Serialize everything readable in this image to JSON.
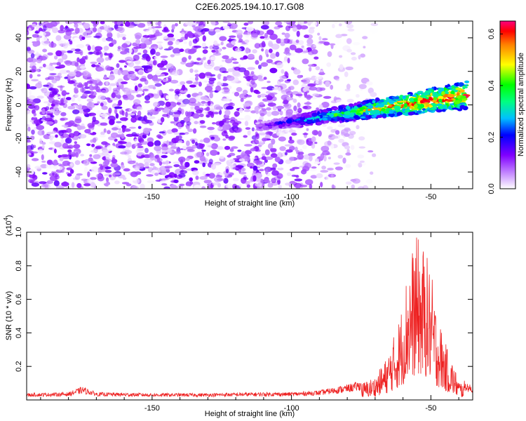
{
  "title": "C2E6.2025.194.10.17.G08",
  "chart_data": [
    {
      "type": "heatmap",
      "xlabel": "Height of straight line (km)",
      "ylabel": "Frequency (Hz)",
      "xlim": [
        -195,
        -35
      ],
      "ylim": [
        -50,
        50
      ],
      "x_ticks": [
        -150,
        -100,
        -50
      ],
      "y_ticks": [
        -40,
        -20,
        0,
        20,
        40
      ],
      "colorbar": {
        "label": "Normalized spectral amplitude",
        "range": [
          0.0,
          0.65
        ],
        "ticks": [
          "0.0",
          "0.2",
          "0.4",
          "0.6"
        ],
        "colormap": [
          "#ffffff",
          "#c080ff",
          "#8000ff",
          "#0000ff",
          "#00c0ff",
          "#00ff80",
          "#00ff00",
          "#ffff00",
          "#ff8000",
          "#ff0000",
          "#ff0080"
        ]
      },
      "ridge": {
        "x_range": [
          -112,
          -37
        ],
        "frequency_at_start": -13,
        "frequency_at_end": 6,
        "peak_amplitude": 0.65
      },
      "background_amplitude_range": [
        0.0,
        0.15
      ],
      "background_extent_x": [
        -195,
        -78
      ]
    },
    {
      "type": "line",
      "xlabel": "Height of straight line (km)",
      "ylabel": "SNR (10 * v/v)",
      "y_scale_label": "(x10",
      "y_scale_exponent": "4",
      "xlim": [
        -195,
        -35
      ],
      "ylim": [
        0,
        1.0
      ],
      "x_ticks": [
        -150,
        -100,
        -50
      ],
      "y_ticks": [
        "0.2",
        "0.4",
        "0.6",
        "0.8",
        "1.0"
      ],
      "color": "#ee2222",
      "envelope_x": [
        -195,
        -180,
        -175,
        -170,
        -150,
        -130,
        -110,
        -100,
        -90,
        -80,
        -75,
        -70,
        -66,
        -62,
        -60,
        -58,
        -55,
        -52,
        -50,
        -48,
        -45,
        -42,
        -40,
        -35
      ],
      "envelope_y": [
        0.035,
        0.04,
        0.07,
        0.04,
        0.035,
        0.035,
        0.04,
        0.04,
        0.05,
        0.08,
        0.1,
        0.14,
        0.25,
        0.45,
        0.6,
        0.85,
        0.98,
        0.9,
        0.78,
        0.55,
        0.35,
        0.22,
        0.12,
        0.07
      ]
    }
  ]
}
